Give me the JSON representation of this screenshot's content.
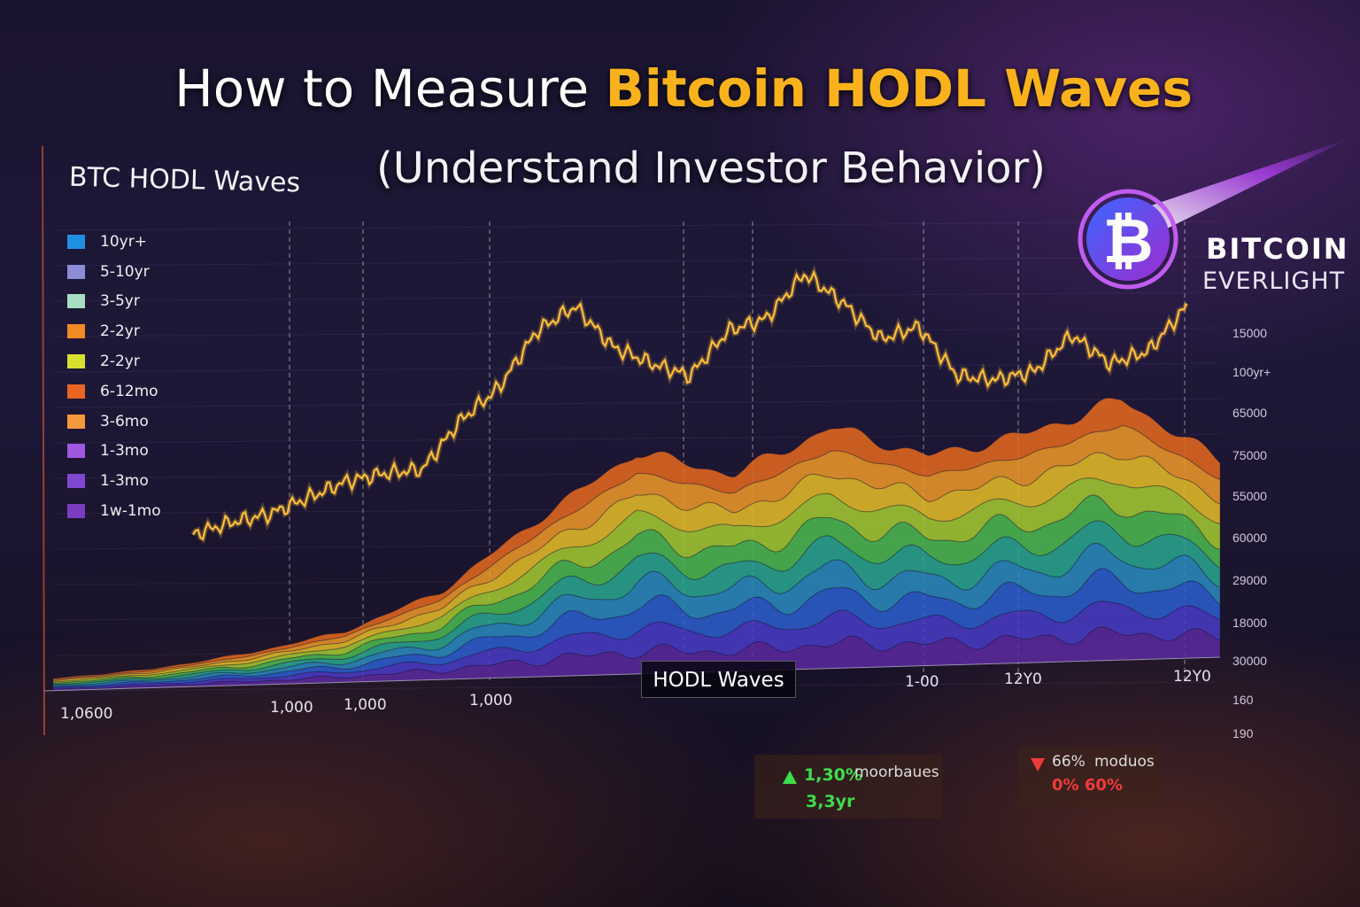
{
  "header": {
    "title_plain": "How to Measure ",
    "title_highlight": "Bitcoin HODL Waves",
    "subtitle": "(Understand Investor Behavior)"
  },
  "brand": {
    "name_line1": "BITCOIN",
    "name_line2": "EVERLIGHT",
    "logo_glyph": "₿"
  },
  "colors": {
    "accent": "#f9b21c",
    "up": "#3ddc4a",
    "down": "#f03a3a",
    "price_line": "#ffbf3a"
  },
  "stats": {
    "up": {
      "icon": "triangle-up-icon",
      "value": "1,30%",
      "label": "moorbaues",
      "sub": "3,3yr"
    },
    "down": {
      "icon": "triangle-down-icon",
      "value": "66%",
      "label": "moduos",
      "sub": "0% 60%"
    }
  },
  "chart_data": {
    "type": "area",
    "title": "BTC HODL Waves",
    "center_label": "HODL Waves",
    "stacked": true,
    "grid": true,
    "legend_position": "left",
    "legend": [
      {
        "name": "10yr+",
        "color": "#1f8fe0"
      },
      {
        "name": "5-10yr",
        "color": "#8c8cd8"
      },
      {
        "name": "3-5yr",
        "color": "#a9dcc4"
      },
      {
        "name": "2-2yr",
        "color": "#f08a24"
      },
      {
        "name": "2-2yr",
        "color": "#d8e02e"
      },
      {
        "name": "6-12mo",
        "color": "#ea6422"
      },
      {
        "name": "3-6mo",
        "color": "#f59a3c"
      },
      {
        "name": "1-3mo",
        "color": "#a058e0"
      },
      {
        "name": "1-3mo",
        "color": "#8048d0"
      },
      {
        "name": "1w-1mo",
        "color": "#7a3cc0"
      }
    ],
    "band_colors_bottom_to_top": [
      "#5a2aa0",
      "#4a3cc8",
      "#2d5fd0",
      "#2a8cc0",
      "#2aa890",
      "#4cbc50",
      "#a6cc30",
      "#e8c028",
      "#f09a28",
      "#e86a1e"
    ],
    "series": [
      {
        "values": [
          0.5,
          0.7,
          1.2,
          1.8,
          3.0,
          5.2,
          7.2,
          6.4,
          7.8,
          6.8,
          7.4,
          8.4,
          6.4
        ]
      },
      {
        "values": [
          0.4,
          0.6,
          1.0,
          1.6,
          2.8,
          5.0,
          7.0,
          6.2,
          7.6,
          6.6,
          7.2,
          8.2,
          6.2
        ]
      },
      {
        "values": [
          0.4,
          0.6,
          1.0,
          1.7,
          2.9,
          5.1,
          7.1,
          6.3,
          7.7,
          6.7,
          7.3,
          8.3,
          6.3
        ]
      },
      {
        "values": [
          0.4,
          0.6,
          1.0,
          1.6,
          2.8,
          5.0,
          7.0,
          6.2,
          7.6,
          6.6,
          7.2,
          8.2,
          6.2
        ]
      },
      {
        "values": [
          0.4,
          0.6,
          1.0,
          1.6,
          2.8,
          5.0,
          7.0,
          6.2,
          7.6,
          6.6,
          7.2,
          8.2,
          6.2
        ]
      },
      {
        "values": [
          0.4,
          0.6,
          1.0,
          1.6,
          2.8,
          5.0,
          7.0,
          6.2,
          7.6,
          6.6,
          7.2,
          8.2,
          6.2
        ]
      },
      {
        "values": [
          0.4,
          0.6,
          1.0,
          1.6,
          2.8,
          5.0,
          7.0,
          6.2,
          7.6,
          6.6,
          7.2,
          8.2,
          6.2
        ]
      },
      {
        "values": [
          0.4,
          0.6,
          1.0,
          1.6,
          2.8,
          5.0,
          7.0,
          6.2,
          7.6,
          6.6,
          7.2,
          8.2,
          6.2
        ]
      },
      {
        "values": [
          0.3,
          0.5,
          0.9,
          1.5,
          2.6,
          4.8,
          6.8,
          6.0,
          7.4,
          6.4,
          7.0,
          8.0,
          6.0
        ]
      },
      {
        "values": [
          0.3,
          0.5,
          0.9,
          1.4,
          2.5,
          4.6,
          6.6,
          5.8,
          7.2,
          6.2,
          6.8,
          7.8,
          5.8
        ]
      }
    ],
    "price_line": {
      "values": [
        34,
        37,
        39,
        43,
        47,
        49,
        50,
        62,
        70,
        84,
        90,
        80,
        76,
        73,
        84,
        87,
        98,
        91,
        82,
        85,
        73,
        72,
        74,
        83,
        76,
        79,
        90
      ]
    },
    "y_ticks_right": [
      "15000",
      "100yr+",
      "65000",
      "75000",
      "55000",
      "60000",
      "29000",
      "18000",
      "30000",
      "160",
      "190"
    ],
    "x_ticks": [
      "1,0600",
      "1,000",
      "1,000",
      "1,000",
      "1-00",
      "12Y0",
      "12Y0"
    ]
  }
}
